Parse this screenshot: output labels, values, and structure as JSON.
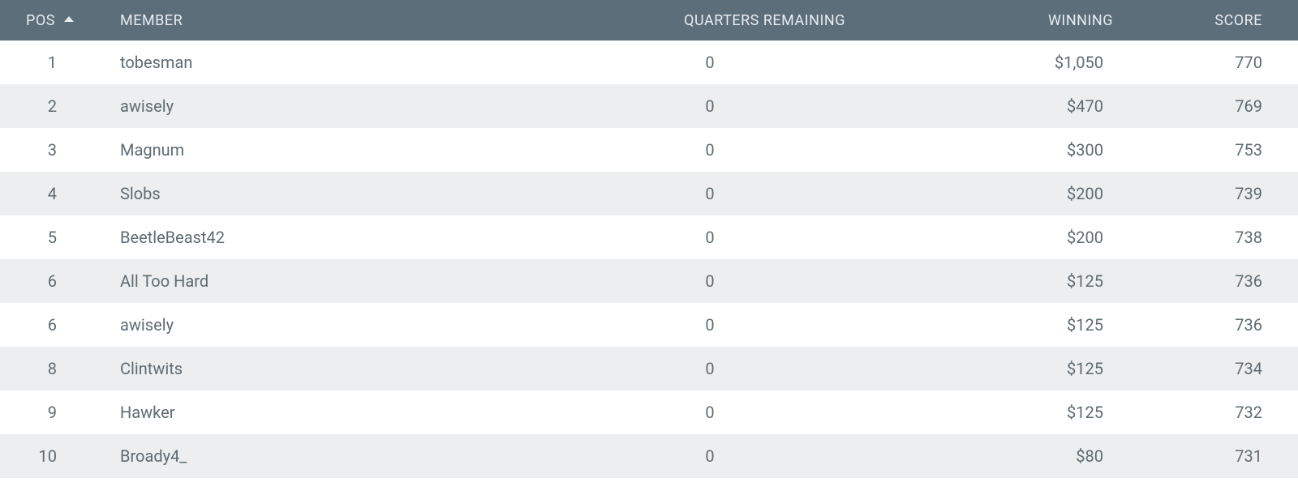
{
  "header": {
    "pos": "POS",
    "member": "MEMBER",
    "quarters_remaining": "QUARTERS REMAINING",
    "winning": "WINNING",
    "score": "SCORE",
    "sort_column": "pos",
    "sort_direction": "asc"
  },
  "colors": {
    "header_bg": "#5c6e7a",
    "header_text": "#e8edf0",
    "row_odd_bg": "#ffffff",
    "row_even_bg": "#eceeef",
    "cell_text": "#5f6b73"
  },
  "rows": [
    {
      "pos": "1",
      "member": "tobesman",
      "quarters_remaining": "0",
      "winning": "$1,050",
      "score": "770"
    },
    {
      "pos": "2",
      "member": "awisely",
      "quarters_remaining": "0",
      "winning": "$470",
      "score": "769"
    },
    {
      "pos": "3",
      "member": "Magnum",
      "quarters_remaining": "0",
      "winning": "$300",
      "score": "753"
    },
    {
      "pos": "4",
      "member": "Slobs",
      "quarters_remaining": "0",
      "winning": "$200",
      "score": "739"
    },
    {
      "pos": "5",
      "member": "BeetleBeast42",
      "quarters_remaining": "0",
      "winning": "$200",
      "score": "738"
    },
    {
      "pos": "6",
      "member": "All Too Hard",
      "quarters_remaining": "0",
      "winning": "$125",
      "score": "736"
    },
    {
      "pos": "6",
      "member": "awisely",
      "quarters_remaining": "0",
      "winning": "$125",
      "score": "736"
    },
    {
      "pos": "8",
      "member": "Clintwits",
      "quarters_remaining": "0",
      "winning": "$125",
      "score": "734"
    },
    {
      "pos": "9",
      "member": "Hawker",
      "quarters_remaining": "0",
      "winning": "$125",
      "score": "732"
    },
    {
      "pos": "10",
      "member": "Broady4_",
      "quarters_remaining": "0",
      "winning": "$80",
      "score": "731"
    }
  ]
}
